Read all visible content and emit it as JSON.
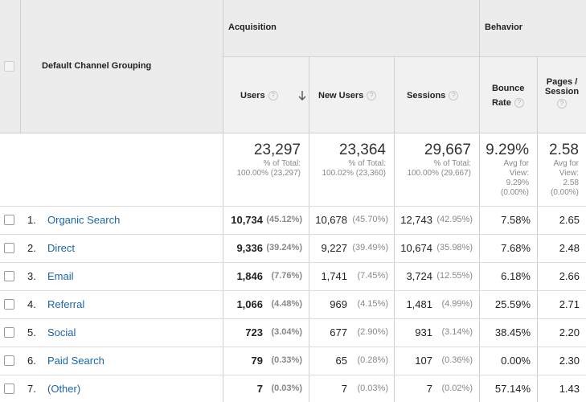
{
  "header": {
    "dimension_label": "Default Channel Grouping",
    "acquisition_label": "Acquisition",
    "behavior_label": "Behavior",
    "columns": {
      "users": "Users",
      "new_users": "New Users",
      "sessions": "Sessions",
      "bounce_rate_line1": "Bounce",
      "bounce_rate_line2": "Rate",
      "pages_session_line1": "Pages /",
      "pages_session_line2": "Session"
    },
    "help_glyph": "?"
  },
  "totals": {
    "users": {
      "value": "23,297",
      "l1": "% of Total:",
      "l2": "100.00% (23,297)"
    },
    "new_users": {
      "value": "23,364",
      "l1": "% of Total:",
      "l2": "100.02% (23,360)"
    },
    "sessions": {
      "value": "29,667",
      "l1": "% of Total:",
      "l2": "100.00% (29,667)"
    },
    "bounce_rate": {
      "value": "9.29%",
      "l1": "Avg for",
      "l2": "View:",
      "l3": "9.29%",
      "l4": "(0.00%)"
    },
    "pages_session": {
      "value": "2.58",
      "l1": "Avg for",
      "l2": "View:",
      "l3": "2.58",
      "l4": "(0.00%)"
    }
  },
  "rows": [
    {
      "idx": "1.",
      "channel": "Organic Search",
      "users": "10,734",
      "users_pct": "(45.12%)",
      "new_users": "10,678",
      "new_users_pct": "(45.70%)",
      "sessions": "12,743",
      "sessions_pct": "(42.95%)",
      "bounce": "7.58%",
      "pages": "2.65"
    },
    {
      "idx": "2.",
      "channel": "Direct",
      "users": "9,336",
      "users_pct": "(39.24%)",
      "new_users": "9,227",
      "new_users_pct": "(39.49%)",
      "sessions": "10,674",
      "sessions_pct": "(35.98%)",
      "bounce": "7.68%",
      "pages": "2.48"
    },
    {
      "idx": "3.",
      "channel": "Email",
      "users": "1,846",
      "users_pct": "(7.76%)",
      "new_users": "1,741",
      "new_users_pct": "(7.45%)",
      "sessions": "3,724",
      "sessions_pct": "(12.55%)",
      "bounce": "6.18%",
      "pages": "2.66"
    },
    {
      "idx": "4.",
      "channel": "Referral",
      "users": "1,066",
      "users_pct": "(4.48%)",
      "new_users": "969",
      "new_users_pct": "(4.15%)",
      "sessions": "1,481",
      "sessions_pct": "(4.99%)",
      "bounce": "25.59%",
      "pages": "2.71"
    },
    {
      "idx": "5.",
      "channel": "Social",
      "users": "723",
      "users_pct": "(3.04%)",
      "new_users": "677",
      "new_users_pct": "(2.90%)",
      "sessions": "931",
      "sessions_pct": "(3.14%)",
      "bounce": "38.45%",
      "pages": "2.20"
    },
    {
      "idx": "6.",
      "channel": "Paid Search",
      "users": "79",
      "users_pct": "(0.33%)",
      "new_users": "65",
      "new_users_pct": "(0.28%)",
      "sessions": "107",
      "sessions_pct": "(0.36%)",
      "bounce": "0.00%",
      "pages": "2.30"
    },
    {
      "idx": "7.",
      "channel": "(Other)",
      "users": "7",
      "users_pct": "(0.03%)",
      "new_users": "7",
      "new_users_pct": "(0.03%)",
      "sessions": "7",
      "sessions_pct": "(0.02%)",
      "bounce": "57.14%",
      "pages": "1.43"
    }
  ],
  "colors": {
    "header_bg": "#ececec",
    "link": "#1a66a8",
    "muted": "#888888"
  }
}
